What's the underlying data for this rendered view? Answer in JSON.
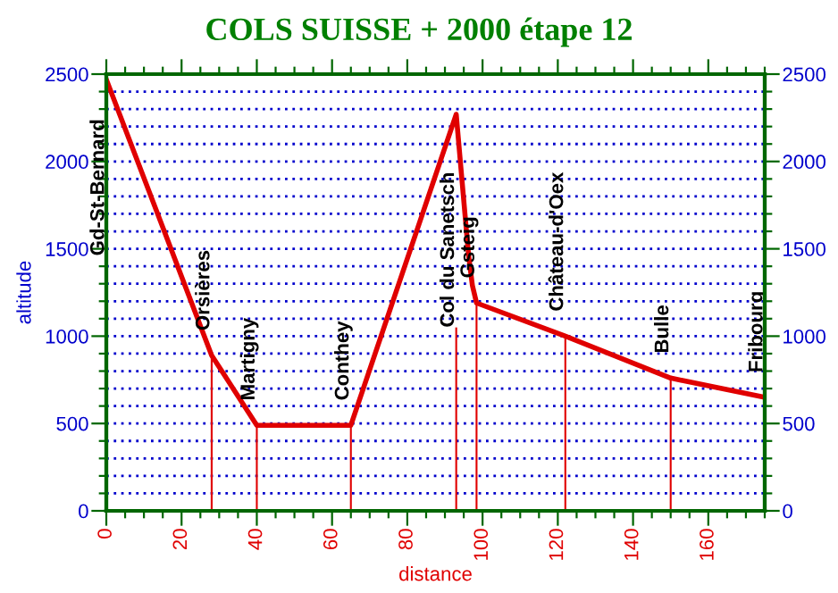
{
  "chart_data": {
    "type": "line",
    "title": "COLS SUISSE + 2000 étape 12",
    "xlabel": "distance",
    "ylabel": "altitude",
    "series": [
      {
        "color": "#e00000",
        "x": [
          0,
          28,
          40,
          50,
          65,
          93,
          94.5,
          96.3,
          97.3,
          98.4,
          122,
          150,
          175
        ],
        "values": [
          2470,
          890,
          490,
          490,
          490,
          2270,
          1900,
          1460,
          1290,
          1190,
          1000,
          760,
          650
        ]
      },
      {
        "type": "bar",
        "color": "#e00000",
        "x": [
          28,
          40,
          65,
          93,
          98.4,
          122,
          150
        ],
        "values": [
          890,
          490,
          490,
          1050,
          1190,
          1000,
          760
        ]
      }
    ],
    "annotations": [
      {
        "text": "Gd-St-Bernard",
        "x": 0,
        "y": 2470
      },
      {
        "text": "Orsières",
        "x": 28,
        "y": 890
      },
      {
        "text": "Martigny",
        "x": 40,
        "y": 490
      },
      {
        "text": "Conthey",
        "x": 65,
        "y": 490
      },
      {
        "text": "Col du Sanetsch",
        "x": 93,
        "y": 1050
      },
      {
        "text": "Gsteig",
        "x": 98.4,
        "y": 1190
      },
      {
        "text": "Château-d'Oex",
        "x": 122,
        "y": 1000
      },
      {
        "text": "Bulle",
        "x": 150,
        "y": 760
      },
      {
        "text": "Fribourg",
        "x": 175,
        "y": 650
      }
    ],
    "xlim": [
      0,
      175
    ],
    "xticks": [
      0,
      {
        "value": 5,
        "label": null
      },
      {
        "value": 10,
        "label": null
      },
      {
        "value": 15,
        "label": null
      },
      20,
      {
        "value": 25,
        "label": null
      },
      {
        "value": 30,
        "label": null
      },
      {
        "value": 35,
        "label": null
      },
      40,
      {
        "value": 45,
        "label": null
      },
      {
        "value": 50,
        "label": null
      },
      {
        "value": 55,
        "label": null
      },
      60,
      {
        "value": 65,
        "label": null
      },
      {
        "value": 70,
        "label": null
      },
      {
        "value": 75,
        "label": null
      },
      80,
      {
        "value": 85,
        "label": null
      },
      {
        "value": 90,
        "label": null
      },
      {
        "value": 95,
        "label": null
      },
      100,
      {
        "value": 105,
        "label": null
      },
      {
        "value": 110,
        "label": null
      },
      {
        "value": 115,
        "label": null
      },
      120,
      {
        "value": 125,
        "label": null
      },
      {
        "value": 130,
        "label": null
      },
      {
        "value": 135,
        "label": null
      },
      140,
      {
        "value": 145,
        "label": null
      },
      {
        "value": 150,
        "label": null
      },
      {
        "value": 155,
        "label": null
      },
      160,
      {
        "value": 165,
        "label": null
      },
      {
        "value": 170,
        "label": null
      },
      {
        "value": 175,
        "label": null
      }
    ],
    "ylim": [
      0,
      2500
    ],
    "yticks": [
      0,
      {
        "value": 100,
        "label": null
      },
      {
        "value": 200,
        "label": null
      },
      {
        "value": 300,
        "label": null
      },
      {
        "value": 400,
        "label": null
      },
      500,
      {
        "value": 600,
        "label": null
      },
      {
        "value": 700,
        "label": null
      },
      {
        "value": 800,
        "label": null
      },
      {
        "value": 900,
        "label": null
      },
      1000,
      {
        "value": 1100,
        "label": null
      },
      {
        "value": 1200,
        "label": null
      },
      {
        "value": 1300,
        "label": null
      },
      {
        "value": 1400,
        "label": null
      },
      1500,
      {
        "value": 1600,
        "label": null
      },
      {
        "value": 1700,
        "label": null
      },
      {
        "value": 1800,
        "label": null
      },
      {
        "value": 1900,
        "label": null
      },
      2000,
      {
        "value": 2100,
        "label": null
      },
      {
        "value": 2200,
        "label": null
      },
      {
        "value": 2300,
        "label": null
      },
      {
        "value": 2400,
        "label": null
      },
      2500
    ],
    "y2lim": [
      0,
      2500
    ],
    "y2ticks": [
      0,
      {
        "value": 100,
        "label": null
      },
      {
        "value": 200,
        "label": null
      },
      {
        "value": 300,
        "label": null
      },
      {
        "value": 400,
        "label": null
      },
      500,
      {
        "value": 600,
        "label": null
      },
      {
        "value": 700,
        "label": null
      },
      {
        "value": 800,
        "label": null
      },
      {
        "value": 900,
        "label": null
      },
      1000,
      {
        "value": 1100,
        "label": null
      },
      {
        "value": 1200,
        "label": null
      },
      {
        "value": 1300,
        "label": null
      },
      {
        "value": 1400,
        "label": null
      },
      1500,
      {
        "value": 1600,
        "label": null
      },
      {
        "value": 1700,
        "label": null
      },
      {
        "value": 1800,
        "label": null
      },
      {
        "value": 1900,
        "label": null
      },
      2000,
      {
        "value": 2100,
        "label": null
      },
      {
        "value": 2200,
        "label": null
      },
      {
        "value": 2300,
        "label": null
      },
      {
        "value": 2400,
        "label": null
      },
      2500
    ],
    "grid": "y",
    "line_style": "solid",
    "marker": "none",
    "legend": false
  }
}
